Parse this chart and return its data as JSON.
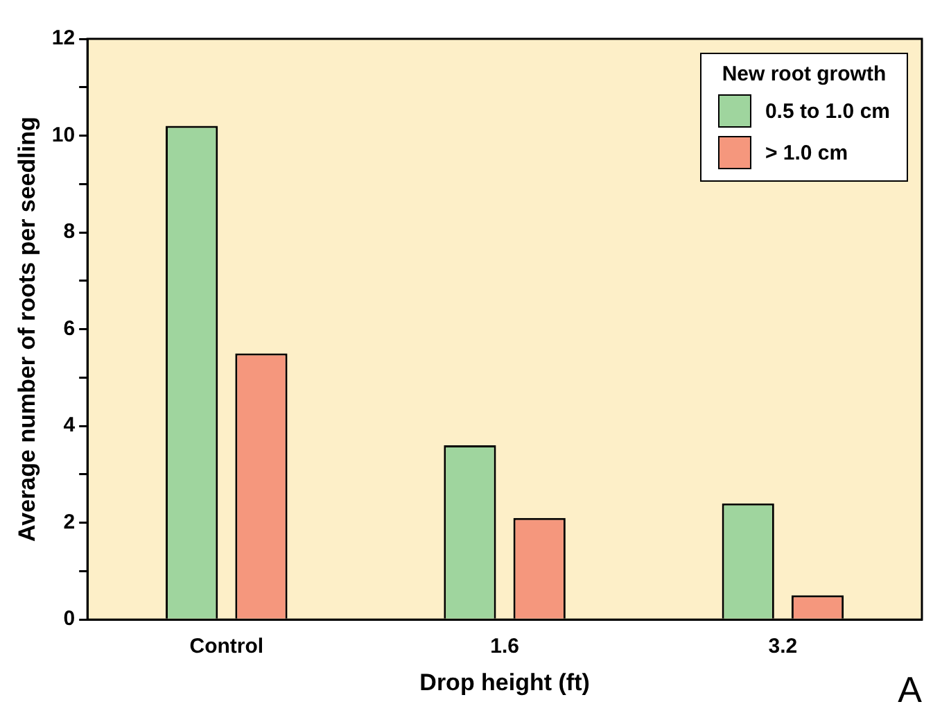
{
  "chart_data": {
    "type": "bar",
    "xlabel": "Drop height (ft)",
    "ylabel": "Average number of roots per seedling",
    "legend_title": "New root growth",
    "categories": [
      "Control",
      "1.6",
      "3.2"
    ],
    "series": [
      {
        "name": "0.5 to 1.0 cm",
        "color": "#9fd59e",
        "values": [
          10.2,
          3.6,
          2.4
        ]
      },
      {
        "name": "> 1.0 cm",
        "color": "#f5977d",
        "values": [
          5.5,
          2.1,
          0.5
        ]
      }
    ],
    "ylim": [
      0,
      12
    ],
    "yticks": [
      0,
      {
        "value": 1,
        "label": null
      },
      2,
      {
        "value": 3,
        "label": null
      },
      4,
      {
        "value": 5,
        "label": null
      },
      6,
      {
        "value": 7,
        "label": null
      },
      8,
      {
        "value": 9,
        "label": null
      },
      10,
      {
        "value": 11,
        "label": null
      },
      12
    ],
    "grid": false,
    "legend": "top right",
    "annotations": [
      "A"
    ]
  }
}
